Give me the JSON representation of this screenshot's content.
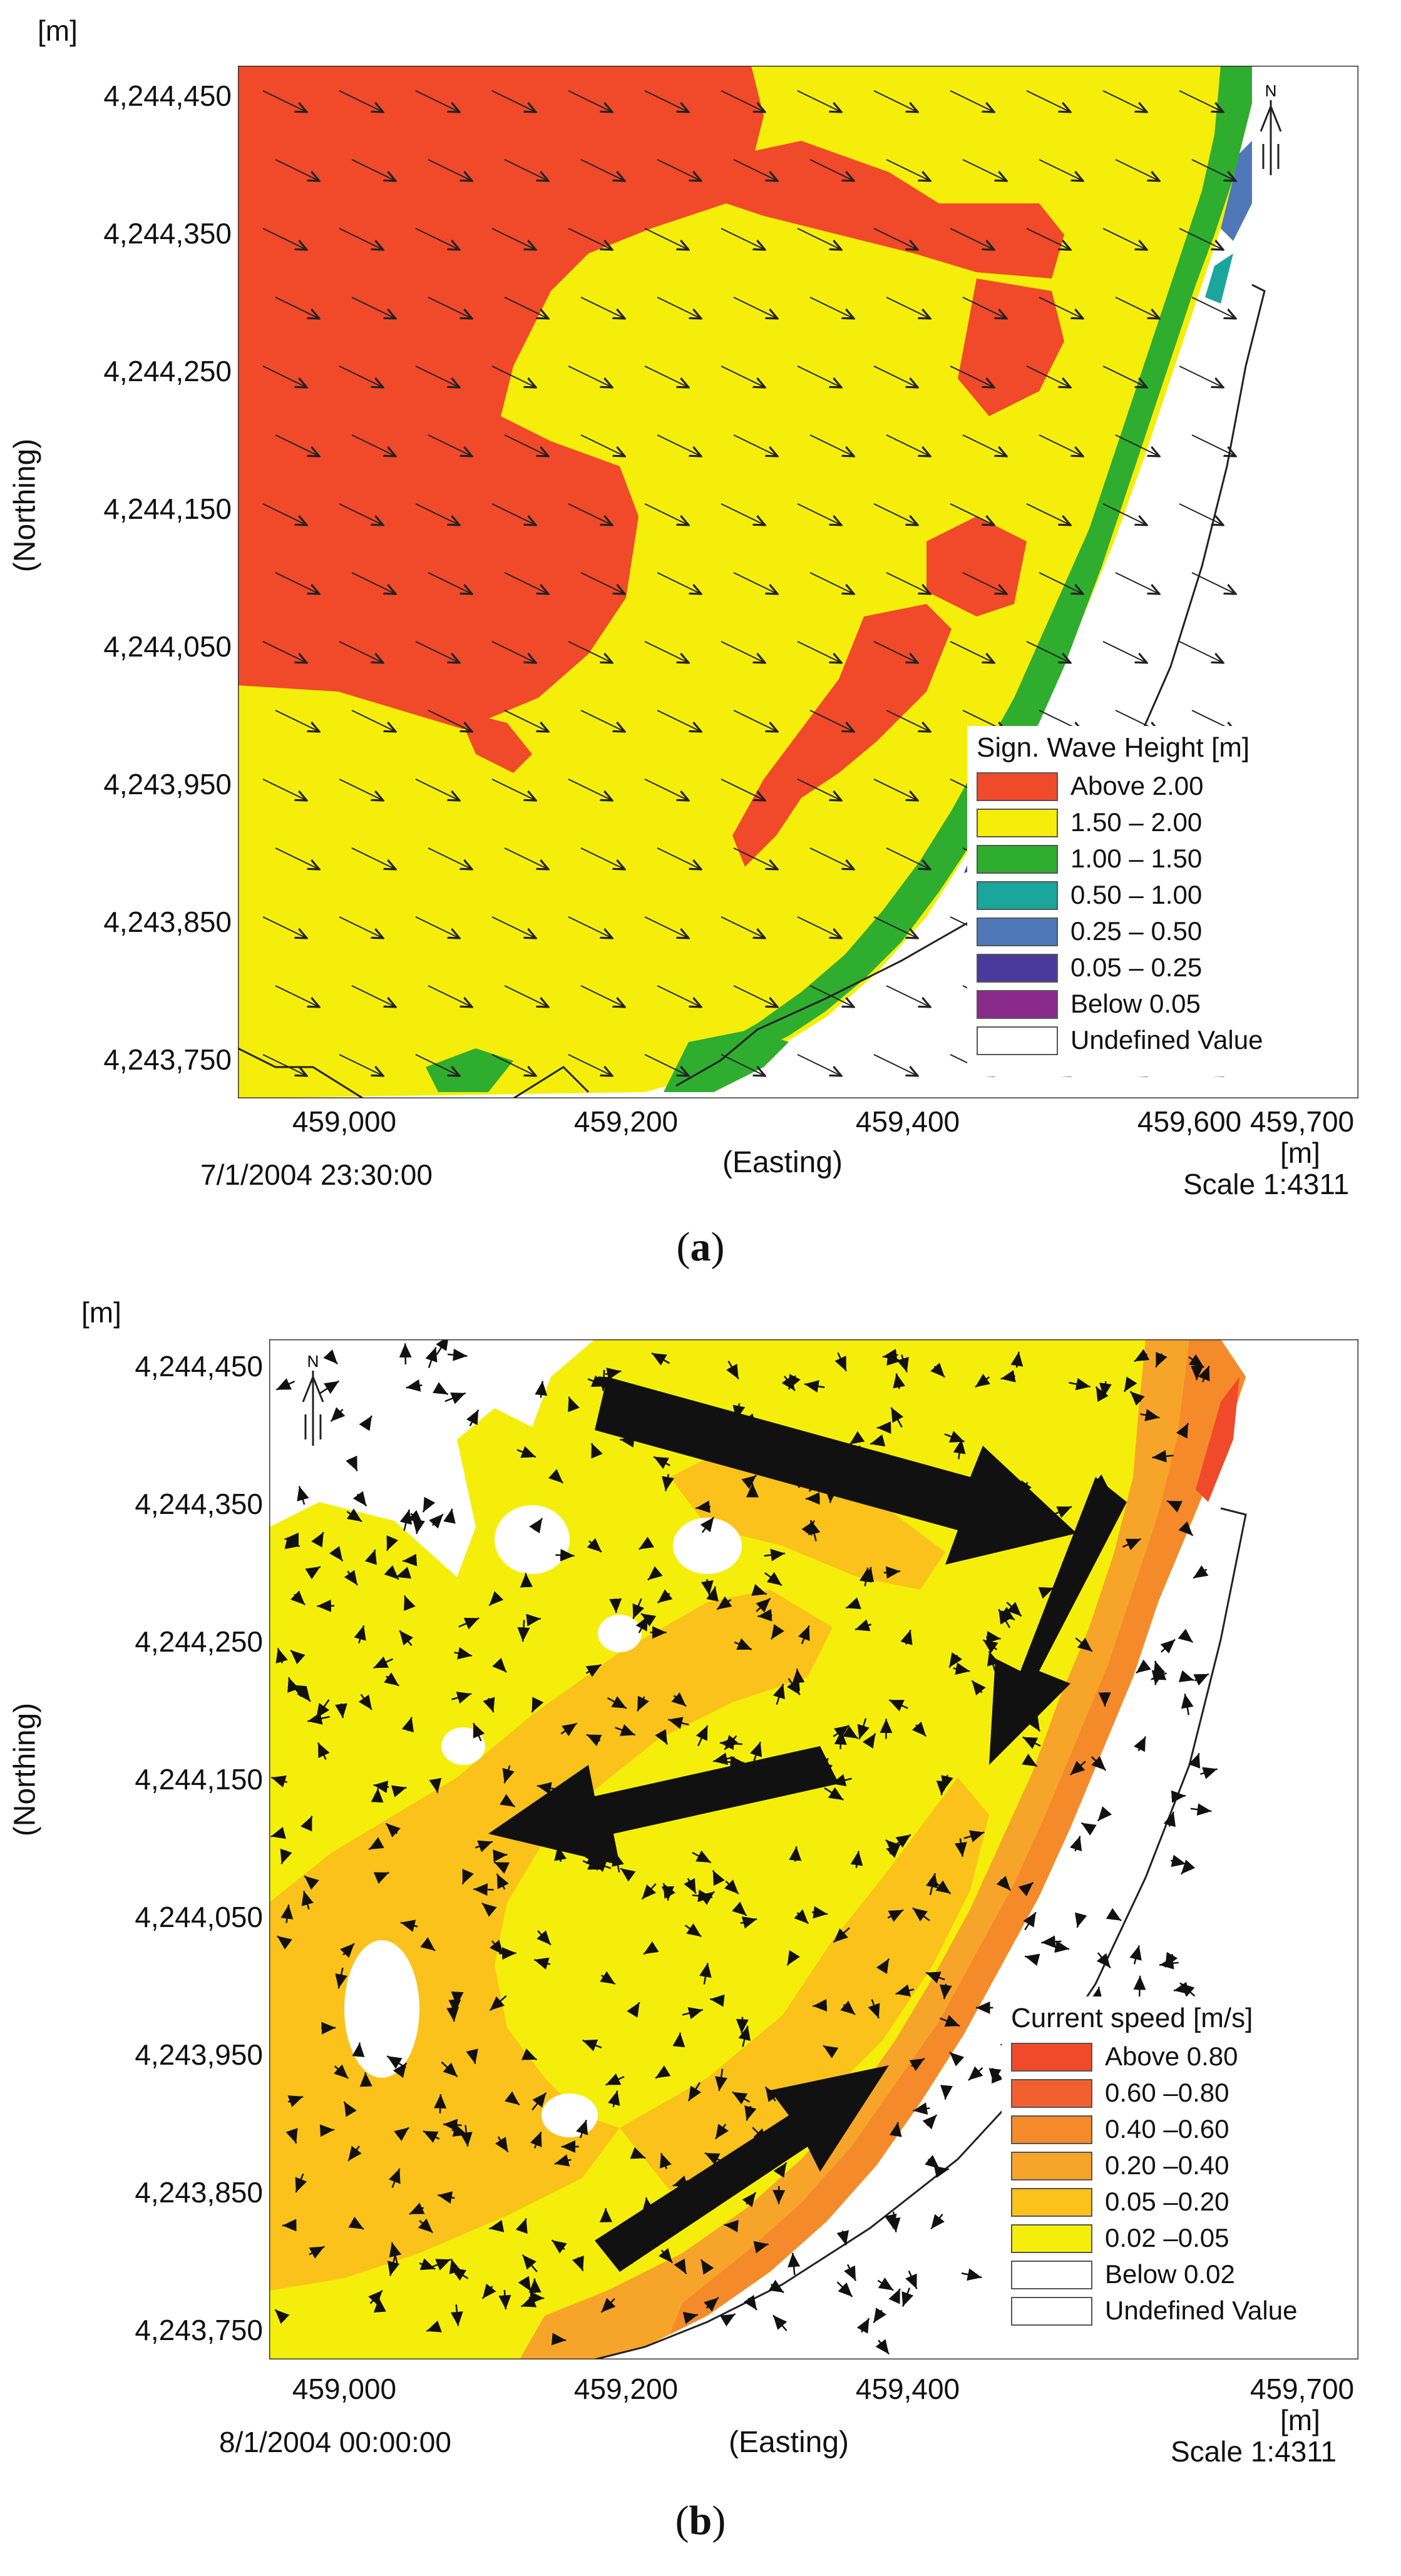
{
  "panel_a": {
    "axis_unit": "[m]",
    "y_ticks": [
      "4,244,450",
      "4,244,350",
      "4,244,250",
      "4,244,150",
      "4,244,050",
      "4,243,950",
      "4,243,850",
      "4,243,750"
    ],
    "x_ticks": [
      "459,000",
      "459,200",
      "459,400",
      "459,600",
      "459,700"
    ],
    "x_label": "(Easting)",
    "y_label": "(Northing)",
    "x_unit": "[m]",
    "timestamp": "7/1/2004 23:30:00",
    "scale": "Scale 1:4311",
    "caption": "a",
    "north_label": "N",
    "legend": {
      "title": "Sign. Wave Height [m]",
      "items": [
        {
          "label": "Above 2.00",
          "color": "#f04a2a"
        },
        {
          "label": "1.50 – 2.00",
          "color": "#f5ee0a"
        },
        {
          "label": "1.00 – 1.50",
          "color": "#2fad2f"
        },
        {
          "label": "0.50 – 1.00",
          "color": "#1aa59d"
        },
        {
          "label": "0.25 – 0.50",
          "color": "#4f78b8"
        },
        {
          "label": "0.05 – 0.25",
          "color": "#4a3a9a"
        },
        {
          "label": "Below 0.05",
          "color": "#8a2a8a"
        },
        {
          "label": "Undefined Value",
          "color": "#ffffff"
        }
      ]
    }
  },
  "panel_b": {
    "axis_unit": "[m]",
    "y_ticks": [
      "4,244,450",
      "4,244,350",
      "4,244,250",
      "4,244,150",
      "4,244,050",
      "4,243,950",
      "4,243,850",
      "4,243,750"
    ],
    "x_ticks": [
      "459,000",
      "459,200",
      "459,400",
      "459,700"
    ],
    "x_label": "(Easting)",
    "y_label": "(Northing)",
    "x_unit": "[m]",
    "timestamp": "8/1/2004 00:00:00",
    "scale": "Scale 1:4311",
    "caption": "b",
    "north_label": "N",
    "legend": {
      "title": "Current speed [m/s]",
      "items": [
        {
          "label": "Above 0.80",
          "color": "#f04a2a"
        },
        {
          "label": "0.60 –0.80",
          "color": "#f26030"
        },
        {
          "label": "0.40 –0.60",
          "color": "#f58a2a"
        },
        {
          "label": "0.20 –0.40",
          "color": "#f7a52a"
        },
        {
          "label": "0.05 –0.20",
          "color": "#fac21a"
        },
        {
          "label": "0.02 –0.05",
          "color": "#f5ee0a"
        },
        {
          "label": "Below 0.02",
          "color": "#ffffff"
        },
        {
          "label": "Undefined Value",
          "color": "#ffffff"
        }
      ]
    }
  }
}
